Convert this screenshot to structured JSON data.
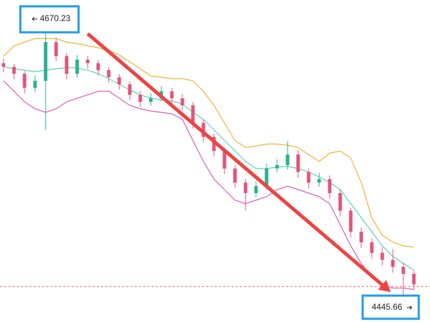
{
  "chart_data": {
    "type": "candlestick",
    "open": [
      4634.7,
      4631.84,
      4626.11,
      4614.65,
      4620.38,
      4651.89,
      4640.43,
      4626.11,
      4637.57,
      4634.7,
      4628.97,
      4623.24,
      4617.51,
      4608.92,
      4603.19,
      4606.05,
      4611.78,
      4606.05,
      4600.32,
      4586.0,
      4574.54,
      4563.08,
      4548.75,
      4537.29,
      4528.7,
      4534.43,
      4548.75,
      4551.62,
      4560.21,
      4545.89,
      4537.29,
      4540.16,
      4528.7,
      4514.37,
      4497.18,
      4488.59,
      4479.99,
      4474.26,
      4468.53,
      4462.8
    ],
    "high": [
      4638.5,
      4634.0,
      4628.3,
      4624.9,
      4670.23,
      4655.6,
      4643.1,
      4641.4,
      4640.9,
      4637.2,
      4631.5,
      4626.0,
      4619.8,
      4612.0,
      4610.3,
      4615.9,
      4614.4,
      4609.6,
      4603.0,
      4588.7,
      4577.3,
      4566.0,
      4551.4,
      4540.1,
      4538.9,
      4553.0,
      4556.3,
      4571.2,
      4563.7,
      4549.0,
      4545.4,
      4543.2,
      4531.5,
      4517.0,
      4500.6,
      4491.8,
      4484.7,
      4483.1,
      4472.0,
      4465.5
    ],
    "low": [
      4627.2,
      4621.5,
      4610.1,
      4611.0,
      4580.3,
      4636.2,
      4621.7,
      4623.0,
      4630.3,
      4624.6,
      4619.0,
      4613.2,
      4604.4,
      4599.1,
      4600.2,
      4603.5,
      4601.8,
      4596.0,
      4581.5,
      4570.2,
      4558.7,
      4544.3,
      4532.8,
      4514.4,
      4525.2,
      4531.1,
      4545.5,
      4547.9,
      4541.3,
      4532.6,
      4533.8,
      4524.1,
      4509.8,
      4492.4,
      4484.0,
      4475.3,
      4469.5,
      4463.9,
      4445.66,
      4449.7
    ],
    "close": [
      4631.84,
      4626.11,
      4614.65,
      4620.38,
      4651.89,
      4640.43,
      4626.11,
      4637.57,
      4634.7,
      4628.97,
      4623.24,
      4617.51,
      4608.92,
      4603.19,
      4606.05,
      4611.78,
      4606.05,
      4600.32,
      4586.0,
      4574.54,
      4563.08,
      4548.75,
      4537.29,
      4528.7,
      4534.43,
      4548.75,
      4551.62,
      4560.21,
      4545.89,
      4537.29,
      4540.16,
      4528.7,
      4514.37,
      4497.18,
      4488.59,
      4479.99,
      4474.26,
      4468.53,
      4462.8,
      4454.21
    ],
    "up_color": "#2bb08f",
    "down_color": "#e2557a",
    "bands": [
      {
        "color": "#f2b233",
        "values": [
          4640.4,
          4649.0,
          4651.9,
          4654.8,
          4654.8,
          4654.8,
          4651.9,
          4650.7,
          4649.0,
          4647.3,
          4645.0,
          4641.6,
          4635.8,
          4630.1,
          4624.4,
          4623.2,
          4622.1,
          4622.1,
          4620.4,
          4611.8,
          4600.3,
          4586.0,
          4571.7,
          4566.0,
          4567.1,
          4568.8,
          4568.8,
          4567.7,
          4566.0,
          4560.2,
          4554.5,
          4561.3,
          4563.1,
          4557.3,
          4537.3,
          4508.6,
          4494.3,
          4488.6,
          4485.7,
          4484.6
        ]
      },
      {
        "color": "#5fd0b4",
        "values": [
          4631.8,
          4630.1,
          4629.0,
          4627.8,
          4629.0,
          4630.1,
          4631.2,
          4630.7,
          4629.0,
          4626.1,
          4622.1,
          4617.5,
          4612.9,
          4608.9,
          4606.1,
          4604.9,
          4603.8,
          4601.5,
          4594.6,
          4588.9,
          4580.3,
          4571.7,
          4563.1,
          4554.5,
          4548.8,
          4548.8,
          4549.9,
          4550.5,
          4548.8,
          4545.9,
          4541.9,
          4537.3,
          4531.6,
          4520.1,
          4508.6,
          4497.2,
          4485.7,
          4477.1,
          4471.4,
          4465.7
        ]
      },
      {
        "color": "#d65ac4",
        "values": [
          4620.4,
          4611.8,
          4603.2,
          4597.5,
          4594.6,
          4597.5,
          4603.2,
          4606.1,
          4608.9,
          4611.8,
          4611.8,
          4606.1,
          4600.3,
          4597.5,
          4595.7,
          4594.6,
          4593.4,
          4588.9,
          4571.7,
          4554.5,
          4540.2,
          4531.6,
          4523.0,
          4520.1,
          4523.0,
          4525.8,
          4531.6,
          4534.4,
          4531.6,
          4528.7,
          4525.8,
          4520.1,
          4502.9,
          4485.7,
          4471.4,
          4460.0,
          4454.2,
          4451.3,
          4451.3,
          4450.2
        ]
      }
    ],
    "price_line": {
      "value": 4452.5,
      "color": "#e05a5a"
    },
    "arrow_color": "#ef4242",
    "label_border_color": "#1e9be8"
  }
}
